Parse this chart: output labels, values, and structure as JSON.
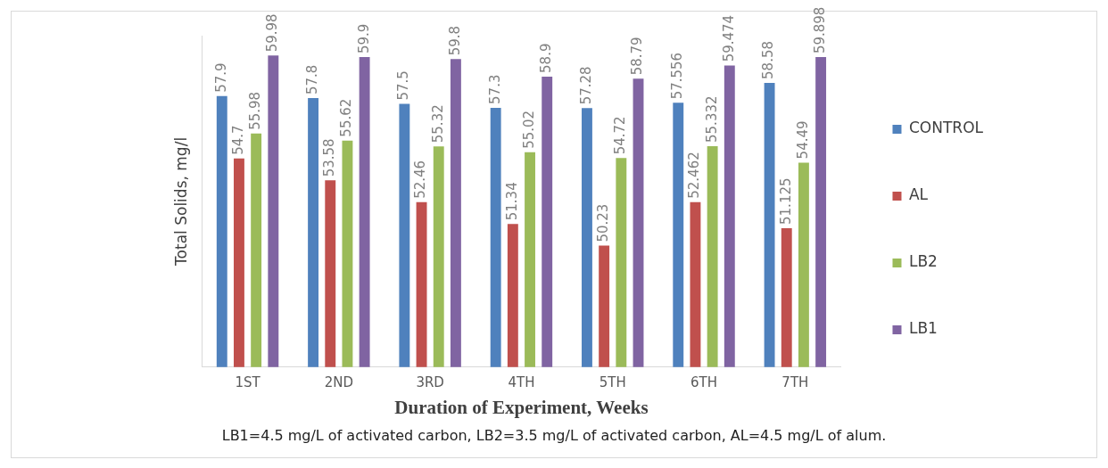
{
  "chart_data": {
    "type": "bar",
    "xlabel": "Duration of Experiment, Weeks",
    "ylabel": "Total Solids, mg/l",
    "categories": [
      "1ST",
      "2ND",
      "3RD",
      "4TH",
      "5TH",
      "6TH",
      "7TH"
    ],
    "series": [
      {
        "name": "CONTROL",
        "color": "#4f81bd",
        "values": [
          57.9,
          57.8,
          57.5,
          57.3,
          57.28,
          57.556,
          58.58
        ]
      },
      {
        "name": "AL",
        "color": "#c0504d",
        "values": [
          54.7,
          53.58,
          52.46,
          51.34,
          50.23,
          52.462,
          51.125
        ]
      },
      {
        "name": "LB2",
        "color": "#9bbb59",
        "values": [
          55.98,
          55.62,
          55.32,
          55.02,
          54.72,
          55.332,
          54.49
        ]
      },
      {
        "name": "LB1",
        "color": "#8064a2",
        "values": [
          59.98,
          59.9,
          59.8,
          58.9,
          58.79,
          59.474,
          59.898
        ]
      }
    ],
    "ylim": [
      44,
      61
    ],
    "data_labels": true,
    "grid": false,
    "legend": "right",
    "tick_labels": "x",
    "annotations": [
      "LB1=4.5 mg/L of activated carbon, LB2=3.5 mg/L of activated carbon, AL=4.5 mg/L of alum."
    ]
  }
}
